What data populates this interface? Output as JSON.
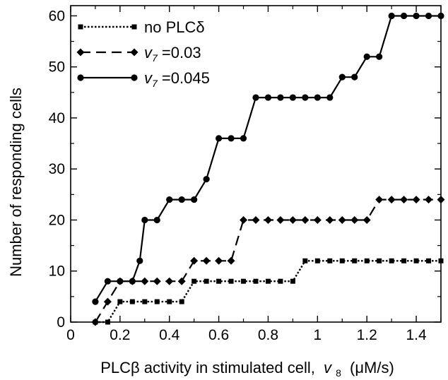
{
  "chart_data": {
    "type": "line",
    "xlabel": "PLCβ activity in stimulated cell,",
    "xlabel_var": "v",
    "xlabel_sub": "8",
    "xlabel_unit": "(μM/s)",
    "ylabel": "Number of responding cells",
    "xlim": [
      0,
      1.5
    ],
    "ylim": [
      0,
      62
    ],
    "x_ticks": [
      0,
      0.2,
      0.4,
      0.6,
      0.8,
      1,
      1.2,
      1.4
    ],
    "x_tick_labels": [
      "0",
      "0.2",
      "0.4",
      "0.6",
      "0.8",
      "1",
      "1.2",
      "1.4"
    ],
    "y_ticks": [
      0,
      10,
      20,
      30,
      40,
      50,
      60
    ],
    "y_tick_labels": [
      "0",
      "10",
      "20",
      "30",
      "40",
      "50",
      "60"
    ],
    "grid": false,
    "legend_position": "top-left",
    "series": [
      {
        "name": "no PLCδ",
        "legend_var": "",
        "legend_sub": "",
        "legend_rest": "",
        "marker": "square",
        "dash": "dotted",
        "x": [
          0.1,
          0.15,
          0.2,
          0.25,
          0.3,
          0.35,
          0.4,
          0.45,
          0.5,
          0.55,
          0.6,
          0.65,
          0.7,
          0.75,
          0.8,
          0.85,
          0.9,
          0.95,
          1.0,
          1.05,
          1.1,
          1.15,
          1.2,
          1.25,
          1.3,
          1.35,
          1.4,
          1.45,
          1.5
        ],
        "y": [
          0,
          0,
          4,
          4,
          4,
          4,
          4,
          4,
          8,
          8,
          8,
          8,
          8,
          8,
          8,
          8,
          8,
          12,
          12,
          12,
          12,
          12,
          12,
          12,
          12,
          12,
          12,
          12,
          12
        ]
      },
      {
        "name": "",
        "legend_var": "v",
        "legend_sub": "7",
        "legend_rest": " =0.03",
        "marker": "diamond",
        "dash": "dashed",
        "x": [
          0.1,
          0.15,
          0.2,
          0.25,
          0.3,
          0.35,
          0.4,
          0.45,
          0.5,
          0.55,
          0.6,
          0.65,
          0.7,
          0.75,
          0.8,
          0.85,
          0.9,
          0.95,
          1.0,
          1.05,
          1.1,
          1.15,
          1.2,
          1.25,
          1.3,
          1.35,
          1.4,
          1.45,
          1.5
        ],
        "y": [
          0,
          4,
          8,
          8,
          8,
          8,
          8,
          8,
          12,
          12,
          12,
          12,
          20,
          20,
          20,
          20,
          20,
          20,
          20,
          20,
          20,
          20,
          20,
          24,
          24,
          24,
          24,
          24,
          24
        ]
      },
      {
        "name": "",
        "legend_var": "v",
        "legend_sub": "7",
        "legend_rest": " =0.045",
        "marker": "circle",
        "dash": "solid",
        "x": [
          0.1,
          0.15,
          0.2,
          0.25,
          0.28,
          0.3,
          0.35,
          0.4,
          0.45,
          0.5,
          0.55,
          0.6,
          0.65,
          0.7,
          0.75,
          0.8,
          0.85,
          0.9,
          0.95,
          1.0,
          1.05,
          1.1,
          1.15,
          1.2,
          1.25,
          1.3,
          1.35,
          1.4,
          1.45,
          1.5
        ],
        "y": [
          4,
          8,
          8,
          8,
          12,
          20,
          20,
          24,
          24,
          24,
          28,
          36,
          36,
          36,
          44,
          44,
          44,
          44,
          44,
          44,
          44,
          48,
          48,
          52,
          52,
          60,
          60,
          60,
          60,
          60
        ]
      }
    ]
  }
}
